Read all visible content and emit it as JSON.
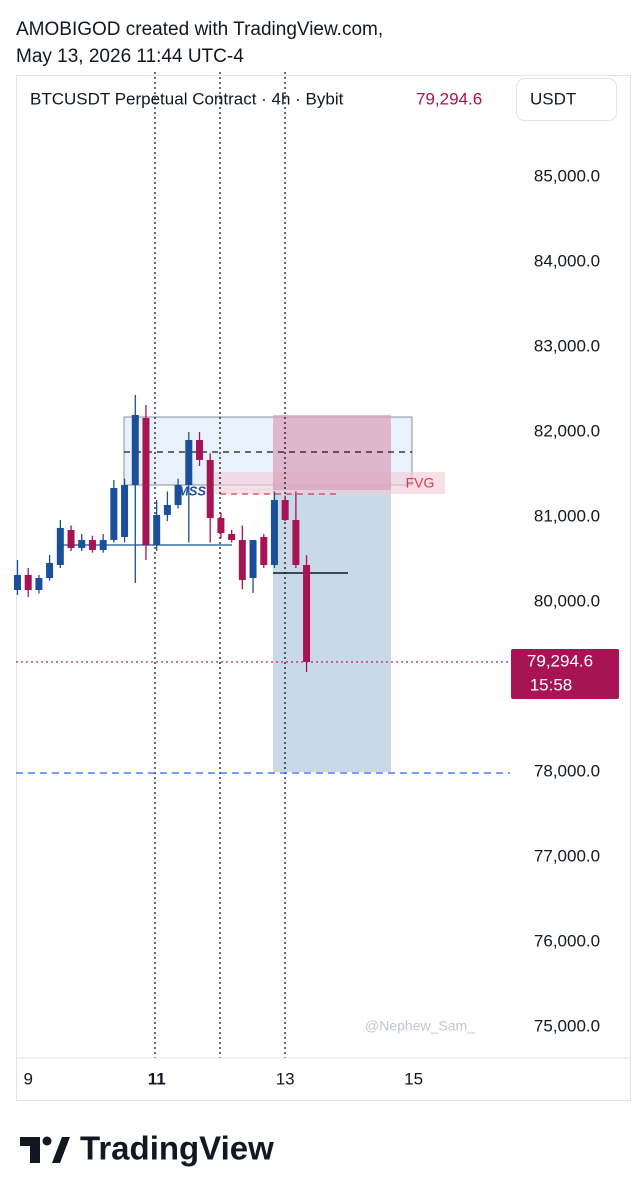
{
  "header": {
    "line1": "AMOBIGOD created with TradingView.com,",
    "line2": "May 13, 2026 11:44 UTC-4"
  },
  "chart_data": {
    "type": "candlestick",
    "title": "BTCUSDT Perpetual Contract · 4h · Bybit",
    "currency": "USDT",
    "x": [
      8.833,
      9,
      9.167,
      9.333,
      9.5,
      9.667,
      9.833,
      10,
      10.167,
      10.333,
      10.5,
      10.667,
      10.833,
      11,
      11.167,
      11.333,
      11.5,
      11.667,
      11.833,
      12,
      12.167,
      12.333,
      12.5,
      12.667,
      12.833,
      13,
      13.167,
      13.333
    ],
    "open": [
      80141,
      80318,
      80141,
      80282,
      80435,
      80847,
      80635,
      80729,
      80612,
      80729,
      80765,
      81376,
      82165,
      80671,
      81024,
      81141,
      81376,
      81906,
      81671,
      80988,
      80800,
      80729,
      80282,
      80765,
      80435,
      81200,
      80965,
      80435
    ],
    "high": [
      80494,
      80400,
      80318,
      80553,
      80965,
      80900,
      80800,
      80780,
      80800,
      81435,
      81450,
      82435,
      82318,
      81200,
      81300,
      81450,
      82000,
      82000,
      81750,
      81050,
      80850,
      80900,
      80700,
      80800,
      81300,
      81250,
      81300,
      80550
    ],
    "low": [
      80082,
      80059,
      80100,
      80250,
      80400,
      80600,
      80600,
      80580,
      80580,
      80700,
      80700,
      80224,
      80494,
      80600,
      80950,
      81100,
      80700,
      81600,
      80700,
      80750,
      80700,
      80150,
      80106,
      80400,
      80400,
      80950,
      80400,
      79176
    ],
    "close": [
      80318,
      80141,
      80282,
      80459,
      80871,
      80635,
      80729,
      80612,
      80729,
      81341,
      81376,
      82200,
      80671,
      81024,
      81141,
      81376,
      81906,
      81671,
      80988,
      80812,
      80729,
      80259,
      80729,
      80435,
      81200,
      80965,
      80435,
      79294.6
    ],
    "up_color": "#1b4f9a",
    "down_color": "#a81453",
    "last_price": {
      "value": 79294.6,
      "label": "79,294.6"
    },
    "countdown": "15:58",
    "xlim": [
      8.81,
      16.5
    ],
    "ylim": [
      74635,
      86200
    ],
    "xticks": [
      9,
      11,
      13,
      15
    ],
    "yticks": [
      {
        "value": 75000,
        "label": "75,000.0"
      },
      {
        "value": 76000,
        "label": "76,000.0"
      },
      {
        "value": 77000,
        "label": "77,000.0"
      },
      {
        "value": 78000,
        "label": "78,000.0"
      },
      {
        "value": 80000,
        "label": "80,000.0"
      },
      {
        "value": 81000,
        "label": "81,000.0"
      },
      {
        "value": 82000,
        "label": "82,000.0"
      },
      {
        "value": 83000,
        "label": "83,000.0"
      },
      {
        "value": 84000,
        "label": "84,000.0"
      },
      {
        "value": 85000,
        "label": "85,000.0"
      }
    ],
    "annotations": [
      "MSS",
      "FVG"
    ],
    "watermark": "@Nephew_Sam_"
  },
  "footer": {
    "brand": "TradingView"
  }
}
